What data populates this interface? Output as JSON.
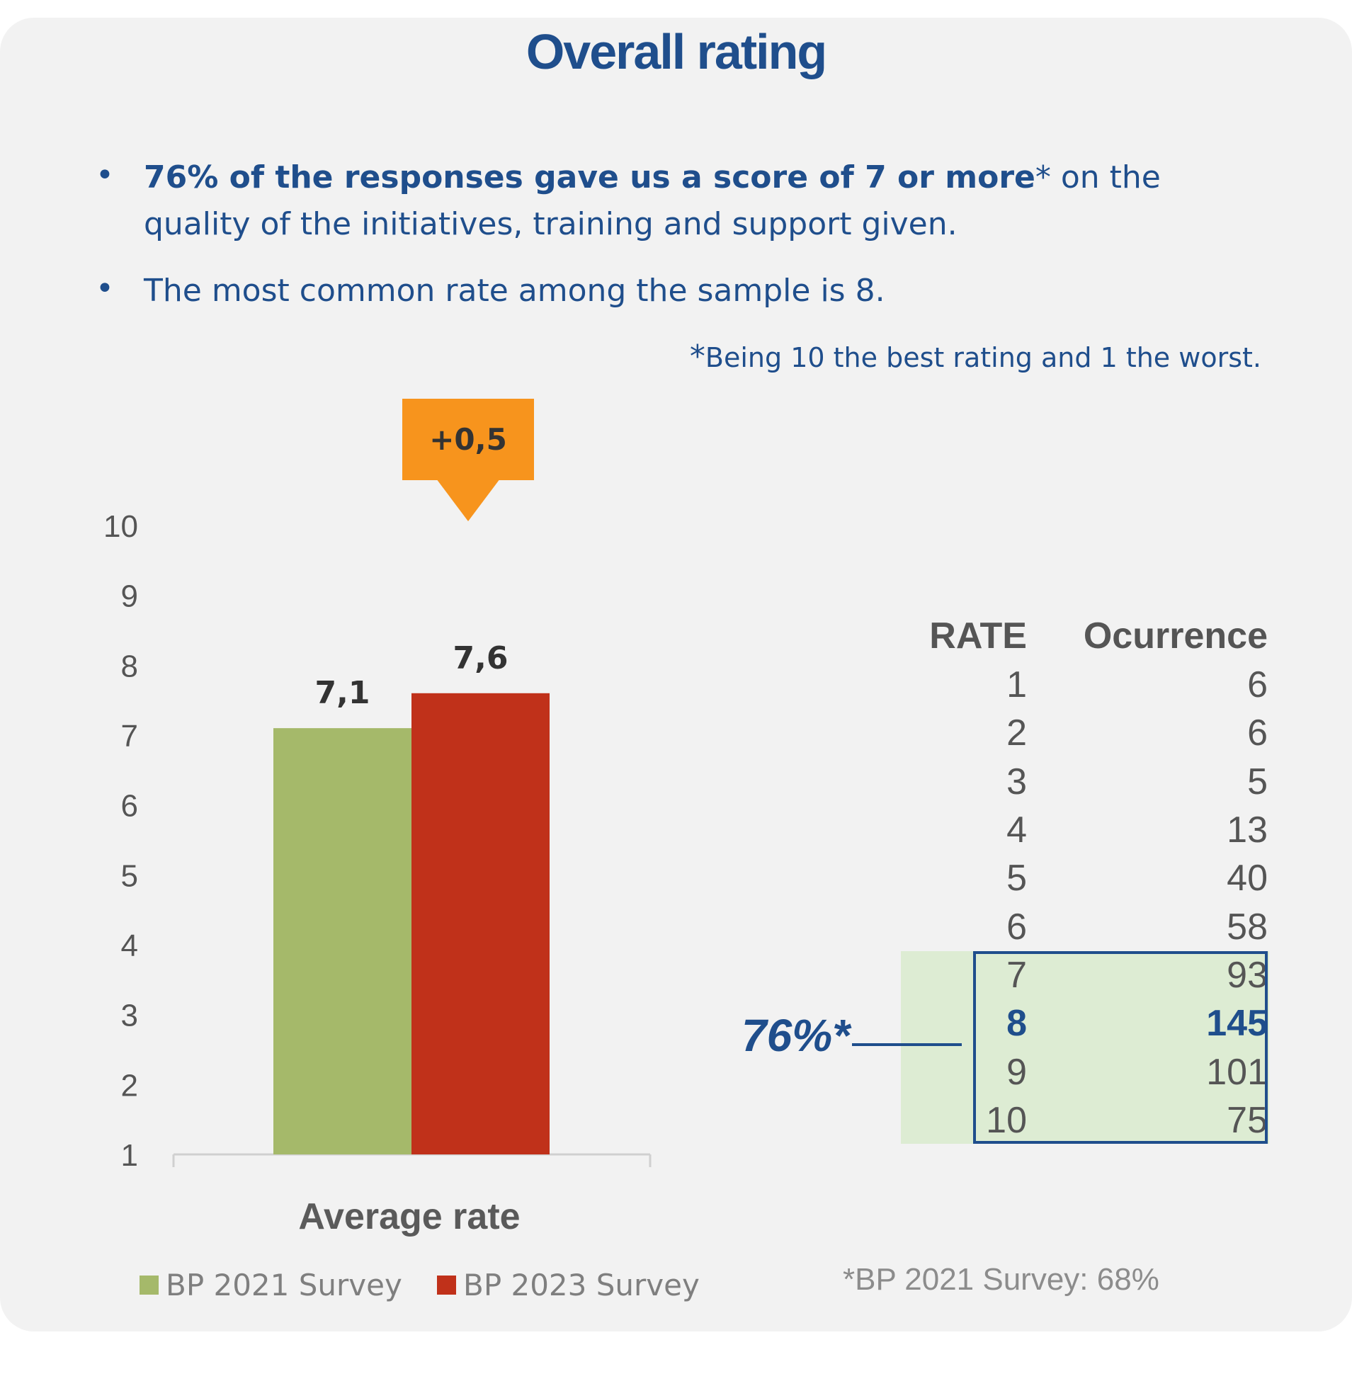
{
  "title": "Overall rating",
  "bullets": [
    {
      "bold": "76% of the responses gave us a score of 7 or more",
      "rest": "* on the  quality of the initiatives, training and support given."
    },
    {
      "bold": "",
      "rest": "The most common rate among the sample is 8."
    }
  ],
  "note": {
    "star": "*",
    "text": "Being 10 the best rating and 1 the worst."
  },
  "delta": "+0,5",
  "chart_data": {
    "type": "bar",
    "categories": [
      "Average rate"
    ],
    "series": [
      {
        "name": "BP 2021 Survey",
        "values": [
          7.1
        ],
        "label": "7,1",
        "color": "#a5b96a"
      },
      {
        "name": "BP 2023 Survey",
        "values": [
          7.6
        ],
        "label": "7,6",
        "color": "#c0311a"
      }
    ],
    "yticks": [
      "1",
      "2",
      "3",
      "4",
      "5",
      "6",
      "7",
      "8",
      "9",
      "10"
    ],
    "ylim": [
      1,
      10
    ],
    "grid": false,
    "legend_position": "bottom"
  },
  "table": {
    "headers": [
      "RATE",
      "Ocurrence"
    ],
    "rows": [
      [
        "1",
        "6"
      ],
      [
        "2",
        "6"
      ],
      [
        "3",
        "5"
      ],
      [
        "4",
        "13"
      ],
      [
        "5",
        "40"
      ],
      [
        "6",
        "58"
      ],
      [
        "7",
        "93"
      ],
      [
        "8",
        "145"
      ],
      [
        "9",
        "101"
      ],
      [
        "10",
        "75"
      ]
    ],
    "highlight_label": "76%*"
  },
  "footnote": "*BP 2021 Survey: 68%"
}
